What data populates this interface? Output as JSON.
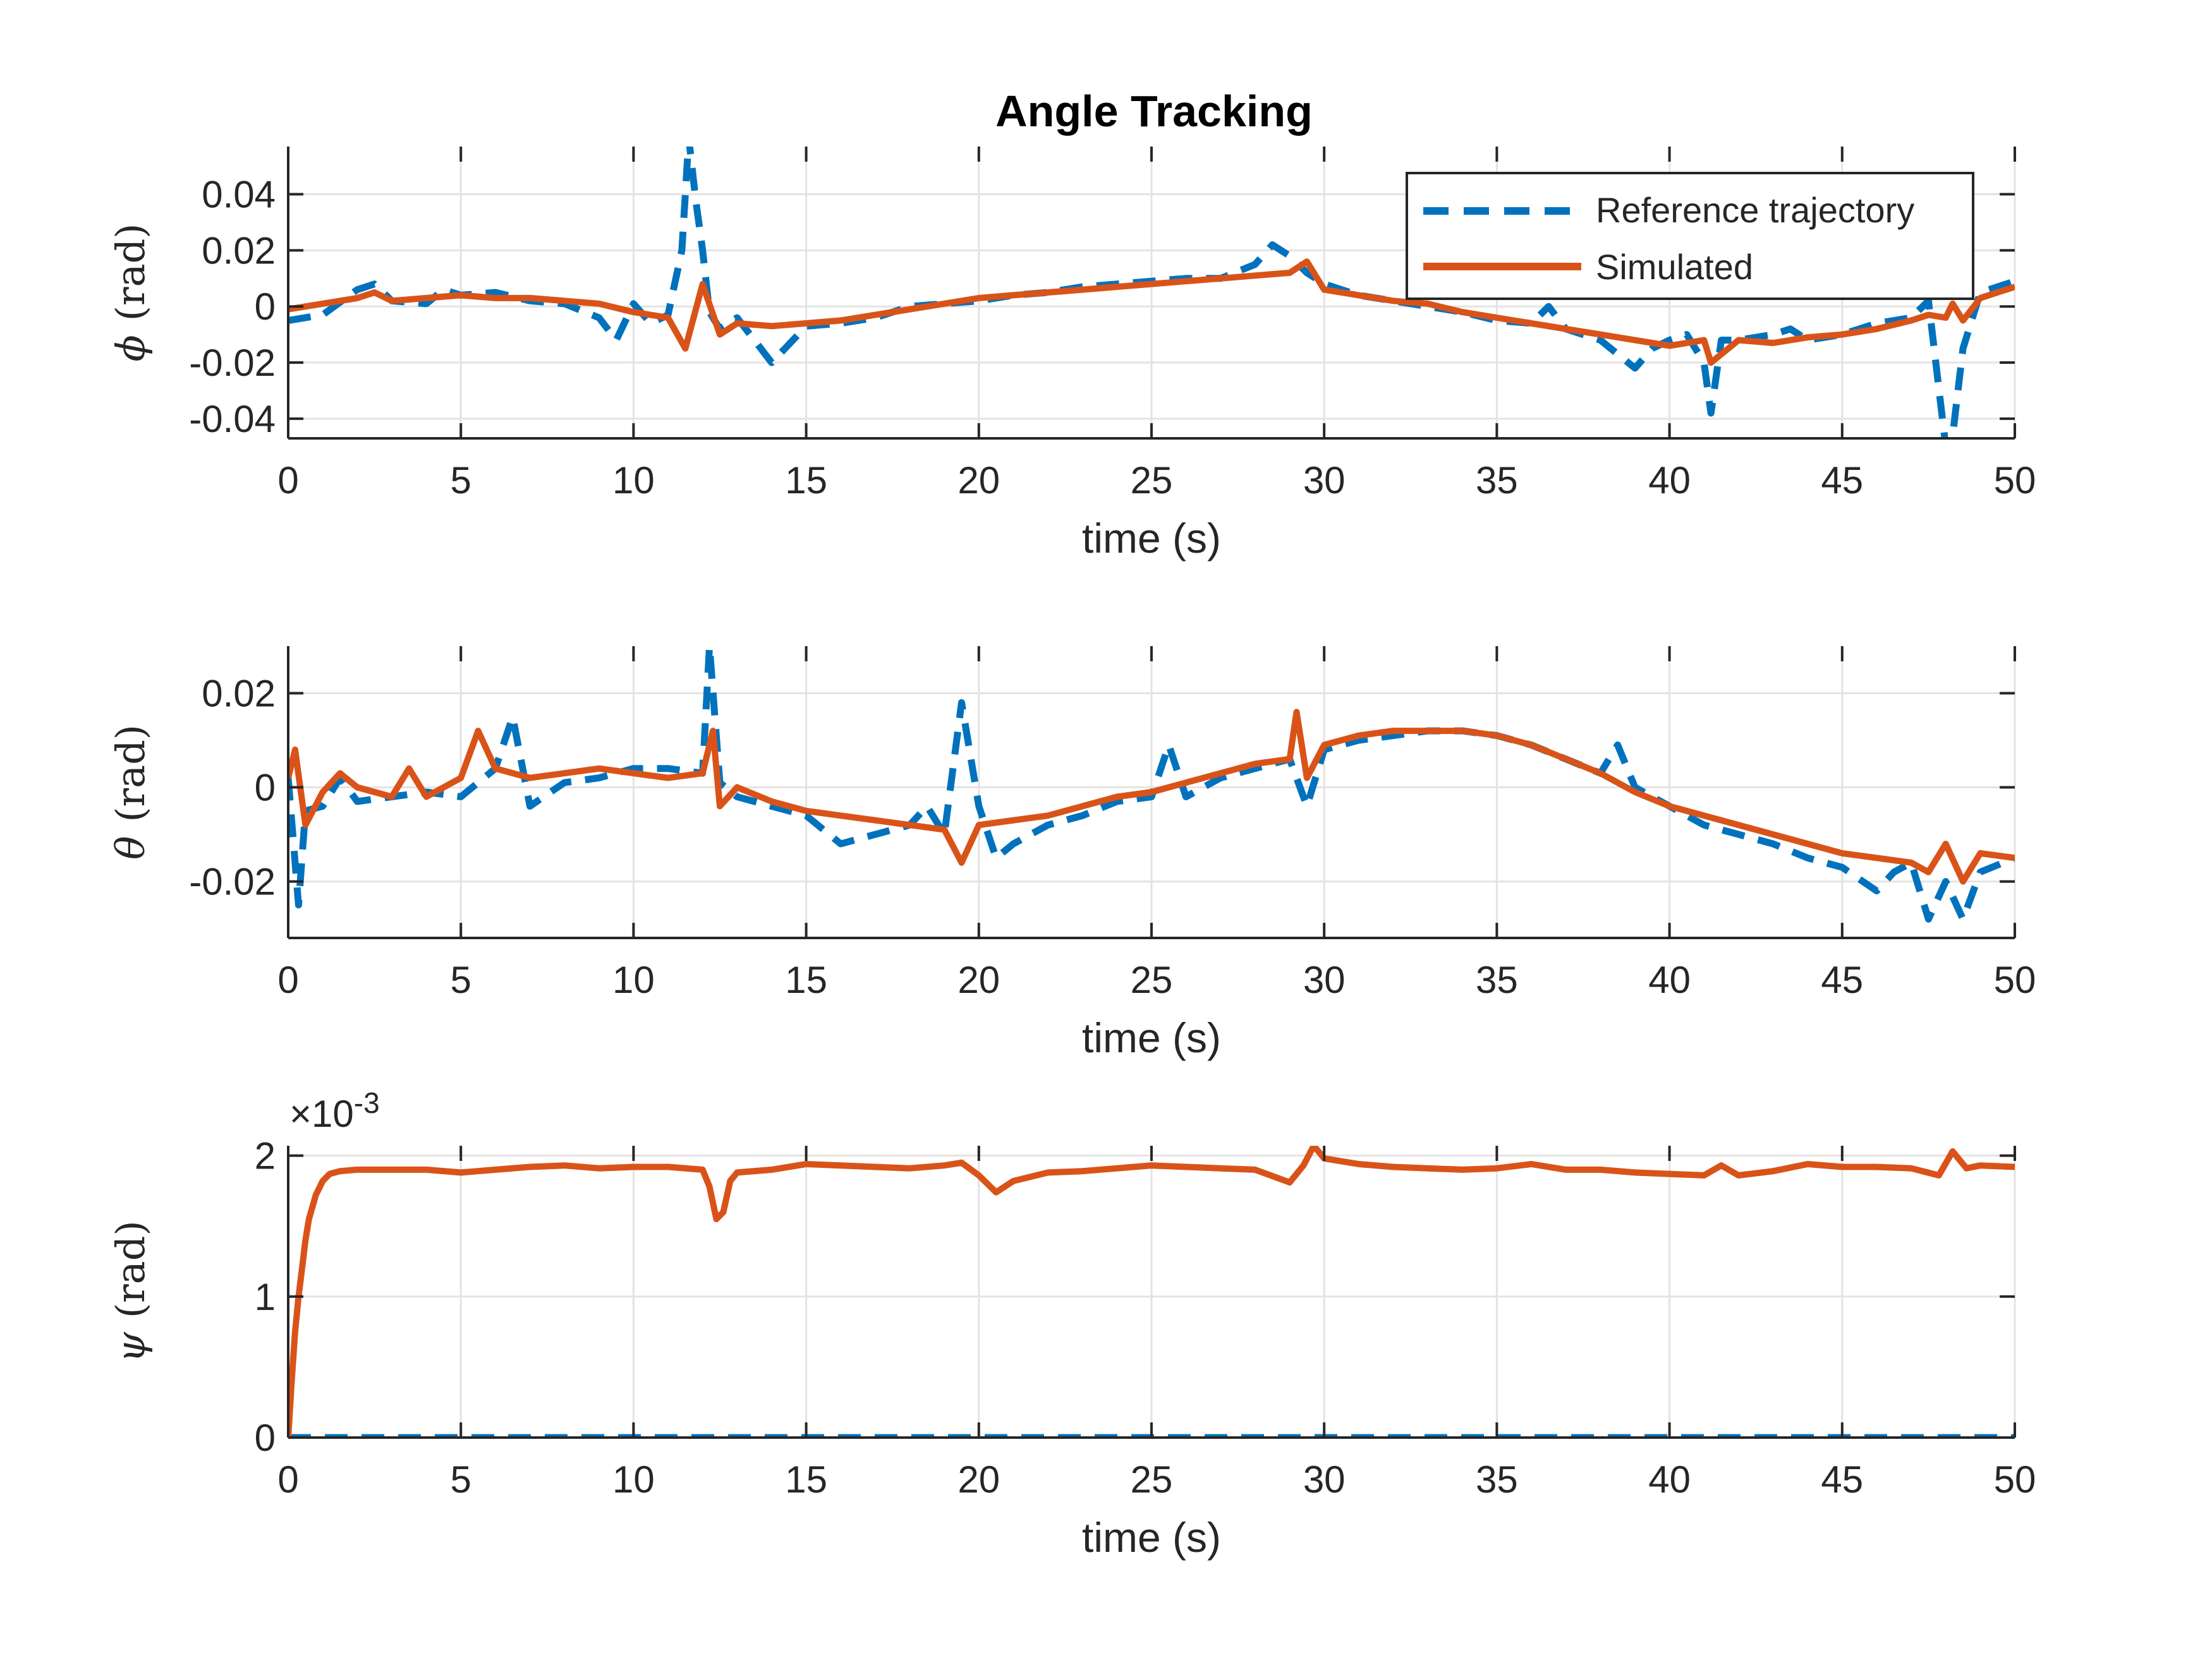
{
  "figure": {
    "title": "Angle Tracking"
  },
  "legend": {
    "placement": "top-right",
    "entries": [
      "Reference trajectory",
      "Simulated"
    ]
  },
  "colors": {
    "reference": "#0072BD",
    "simulated": "#D95319",
    "grid": "#e3e3e3",
    "axis": "#262626"
  },
  "chart_data": [
    {
      "type": "line",
      "title": "Angle Tracking",
      "xlabel": "time (s)",
      "ylabel_symbol": "ϕ",
      "ylabel_unit": "(rad)",
      "xlim": [
        0,
        50
      ],
      "ylim": [
        -0.047,
        0.057
      ],
      "xticks": [
        0,
        5,
        10,
        15,
        20,
        25,
        30,
        35,
        40,
        45,
        50
      ],
      "yticks": [
        -0.04,
        -0.02,
        0,
        0.02,
        0.04
      ],
      "ytick_labels": [
        "-0.04",
        "-0.02",
        "0",
        "0.02",
        "0.04"
      ],
      "grid": true,
      "series": [
        {
          "name": "Reference trajectory",
          "style": "dashed",
          "x": [
            0,
            1,
            2,
            2.5,
            3,
            4,
            4.5,
            5,
            6,
            7,
            8,
            9,
            9.5,
            10,
            10.5,
            11,
            11.4,
            11.6,
            11.8,
            12,
            12.2,
            12.5,
            13,
            13.5,
            14,
            15,
            16,
            17,
            18,
            19,
            20,
            21,
            22,
            23,
            24,
            25,
            26,
            27,
            28,
            28.5,
            29,
            29.5,
            30,
            31,
            32,
            33,
            34,
            35,
            36,
            36.5,
            37,
            38,
            39,
            39.5,
            40,
            40.5,
            41,
            41.2,
            41.5,
            42,
            43,
            43.5,
            44,
            45,
            46,
            47,
            47.5,
            48,
            48.2,
            48.5,
            49,
            50
          ],
          "y": [
            -0.005,
            -0.003,
            0.006,
            0.008,
            0.002,
            0.001,
            0.006,
            0.004,
            0.005,
            0.002,
            0.001,
            -0.004,
            -0.012,
            0.001,
            -0.006,
            -0.003,
            0.02,
            0.06,
            0.038,
            0.02,
            -0.002,
            -0.008,
            -0.004,
            -0.012,
            -0.02,
            -0.007,
            -0.006,
            -0.004,
            0,
            0.001,
            0.002,
            0.004,
            0.005,
            0.007,
            0.008,
            0.009,
            0.01,
            0.01,
            0.015,
            0.022,
            0.018,
            0.012,
            0.008,
            0.004,
            0.002,
            0,
            -0.002,
            -0.005,
            -0.006,
            0,
            -0.008,
            -0.012,
            -0.022,
            -0.015,
            -0.012,
            -0.01,
            -0.02,
            -0.038,
            -0.012,
            -0.012,
            -0.01,
            -0.008,
            -0.012,
            -0.01,
            -0.006,
            -0.004,
            0.002,
            -0.05,
            -0.046,
            -0.015,
            0.005,
            0.009
          ]
        },
        {
          "name": "Simulated",
          "style": "solid",
          "x": [
            0,
            1,
            2,
            2.5,
            3,
            4,
            5,
            6,
            7,
            8,
            9,
            10,
            11,
            11.5,
            12,
            12.5,
            13,
            14,
            15,
            16,
            17,
            18,
            19,
            20,
            21,
            22,
            23,
            24,
            25,
            26,
            27,
            28,
            29,
            29.5,
            30,
            31,
            32,
            33,
            34,
            35,
            36,
            37,
            38,
            39,
            40,
            40.5,
            41,
            41.2,
            42,
            43,
            44,
            45,
            46,
            47,
            47.5,
            48,
            48.2,
            48.5,
            49,
            50
          ],
          "y": [
            -0.001,
            0.001,
            0.003,
            0.005,
            0.002,
            0.003,
            0.004,
            0.003,
            0.003,
            0.002,
            0.001,
            -0.002,
            -0.004,
            -0.015,
            0.008,
            -0.01,
            -0.006,
            -0.007,
            -0.006,
            -0.005,
            -0.003,
            -0.001,
            0.001,
            0.003,
            0.004,
            0.005,
            0.006,
            0.007,
            0.008,
            0.009,
            0.01,
            0.011,
            0.012,
            0.016,
            0.006,
            0.004,
            0.002,
            0.001,
            -0.002,
            -0.004,
            -0.006,
            -0.008,
            -0.01,
            -0.012,
            -0.014,
            -0.013,
            -0.012,
            -0.02,
            -0.012,
            -0.013,
            -0.011,
            -0.01,
            -0.008,
            -0.005,
            -0.003,
            -0.004,
            0.001,
            -0.005,
            0.003,
            0.007
          ]
        }
      ]
    },
    {
      "type": "line",
      "xlabel": "time (s)",
      "ylabel_symbol": "θ",
      "ylabel_unit": "(rad)",
      "xlim": [
        0,
        50
      ],
      "ylim": [
        -0.032,
        0.03
      ],
      "xticks": [
        0,
        5,
        10,
        15,
        20,
        25,
        30,
        35,
        40,
        45,
        50
      ],
      "yticks": [
        -0.02,
        0,
        0.02
      ],
      "ytick_labels": [
        "-0.02",
        "0",
        "0.02"
      ],
      "grid": true,
      "series": [
        {
          "name": "Reference trajectory",
          "style": "dashed",
          "x": [
            0,
            0.3,
            0.5,
            1,
            1.5,
            2,
            3,
            4,
            5,
            6,
            6.5,
            7,
            8,
            9,
            10,
            11,
            12,
            12.2,
            12.5,
            13,
            14,
            15,
            16,
            17,
            18,
            18.5,
            19,
            19.5,
            20,
            20.5,
            21,
            22,
            23,
            24,
            25,
            25.5,
            26,
            27,
            28,
            29,
            29.5,
            30,
            31,
            32,
            33,
            34,
            35,
            36,
            37,
            38,
            38.5,
            39,
            40,
            41,
            42,
            43,
            44,
            45,
            46,
            46.5,
            47,
            47.5,
            48,
            48.5,
            49,
            50
          ],
          "y": [
            0.002,
            -0.025,
            -0.005,
            -0.004,
            0.002,
            -0.003,
            -0.002,
            -0.001,
            -0.002,
            0.004,
            0.015,
            -0.004,
            0.001,
            0.002,
            0.004,
            0.004,
            0.003,
            0.03,
            0.001,
            -0.002,
            -0.004,
            -0.006,
            -0.012,
            -0.01,
            -0.008,
            -0.004,
            -0.01,
            0.018,
            -0.004,
            -0.015,
            -0.012,
            -0.008,
            -0.006,
            -0.003,
            -0.002,
            0.009,
            -0.002,
            0.002,
            0.004,
            0.006,
            -0.004,
            0.008,
            0.01,
            0.011,
            0.012,
            0.012,
            0.011,
            0.009,
            0.006,
            0.003,
            0.009,
            0,
            -0.004,
            -0.008,
            -0.01,
            -0.012,
            -0.015,
            -0.017,
            -0.022,
            -0.018,
            -0.016,
            -0.028,
            -0.02,
            -0.028,
            -0.018,
            -0.015
          ]
        },
        {
          "name": "Simulated",
          "style": "solid",
          "x": [
            0,
            0.2,
            0.5,
            1,
            1.5,
            2,
            3,
            3.5,
            4,
            5,
            5.5,
            6,
            7,
            8,
            9,
            10,
            11,
            12,
            12.3,
            12.5,
            13,
            14,
            15,
            16,
            17,
            18,
            19,
            19.5,
            20,
            21,
            22,
            23,
            24,
            25,
            26,
            27,
            28,
            29,
            29.2,
            29.5,
            30,
            31,
            32,
            33,
            34,
            35,
            36,
            37,
            38,
            39,
            40,
            41,
            42,
            43,
            44,
            45,
            46,
            47,
            47.5,
            48,
            48.5,
            49,
            50
          ],
          "y": [
            0.002,
            0.008,
            -0.008,
            -0.001,
            0.003,
            0,
            -0.002,
            0.004,
            -0.002,
            0.002,
            0.012,
            0.004,
            0.002,
            0.003,
            0.004,
            0.003,
            0.002,
            0.003,
            0.012,
            -0.004,
            0,
            -0.003,
            -0.005,
            -0.006,
            -0.007,
            -0.008,
            -0.009,
            -0.016,
            -0.008,
            -0.007,
            -0.006,
            -0.004,
            -0.002,
            -0.001,
            0.001,
            0.003,
            0.005,
            0.006,
            0.016,
            0.002,
            0.009,
            0.011,
            0.012,
            0.012,
            0.012,
            0.011,
            0.009,
            0.006,
            0.003,
            -0.001,
            -0.004,
            -0.006,
            -0.008,
            -0.01,
            -0.012,
            -0.014,
            -0.015,
            -0.016,
            -0.018,
            -0.012,
            -0.02,
            -0.014,
            -0.015
          ]
        }
      ]
    },
    {
      "type": "line",
      "xlabel": "time (s)",
      "ylabel_symbol": "ψ",
      "ylabel_unit": "(rad)",
      "exponent_label": "×10",
      "exponent_power": "-3",
      "xlim": [
        0,
        50
      ],
      "ylim": [
        0,
        0.00207
      ],
      "xticks": [
        0,
        5,
        10,
        15,
        20,
        25,
        30,
        35,
        40,
        45,
        50
      ],
      "yticks": [
        0,
        0.001,
        0.002
      ],
      "ytick_labels": [
        "0",
        "1",
        "2"
      ],
      "grid": true,
      "series": [
        {
          "name": "Reference trajectory",
          "style": "dashed",
          "x": [
            0,
            50
          ],
          "y": [
            0,
            0
          ]
        },
        {
          "name": "Simulated",
          "style": "solid",
          "x": [
            0,
            0.1,
            0.2,
            0.3,
            0.4,
            0.5,
            0.6,
            0.8,
            1,
            1.2,
            1.5,
            2,
            3,
            4,
            5,
            6,
            7,
            8,
            9,
            10,
            11,
            12,
            12.2,
            12.4,
            12.6,
            12.8,
            13,
            14,
            15,
            16,
            17,
            18,
            19,
            19.5,
            20,
            20.5,
            21,
            22,
            23,
            24,
            25,
            26,
            27,
            28,
            29,
            29.4,
            29.7,
            30,
            31,
            32,
            33,
            34,
            35,
            36,
            37,
            38,
            39,
            40,
            41,
            41.5,
            42,
            43,
            44,
            45,
            46,
            47,
            47.8,
            48.2,
            48.6,
            49,
            50
          ],
          "y": [
            0,
            0.0004,
            0.00075,
            0.001,
            0.0012,
            0.0014,
            0.00155,
            0.00172,
            0.00182,
            0.00187,
            0.00189,
            0.0019,
            0.0019,
            0.0019,
            0.00188,
            0.0019,
            0.00192,
            0.00193,
            0.00191,
            0.00192,
            0.00192,
            0.0019,
            0.00178,
            0.00155,
            0.0016,
            0.00182,
            0.00188,
            0.0019,
            0.00194,
            0.00193,
            0.00192,
            0.00191,
            0.00193,
            0.00195,
            0.00186,
            0.00174,
            0.00182,
            0.00188,
            0.00189,
            0.00191,
            0.00193,
            0.00192,
            0.00191,
            0.0019,
            0.00181,
            0.00193,
            0.00207,
            0.00198,
            0.00194,
            0.00192,
            0.00191,
            0.0019,
            0.00191,
            0.00194,
            0.0019,
            0.0019,
            0.00188,
            0.00187,
            0.00186,
            0.00193,
            0.00186,
            0.00189,
            0.00194,
            0.00192,
            0.00192,
            0.00191,
            0.00186,
            0.00203,
            0.00191,
            0.00193,
            0.00192
          ]
        }
      ]
    }
  ]
}
